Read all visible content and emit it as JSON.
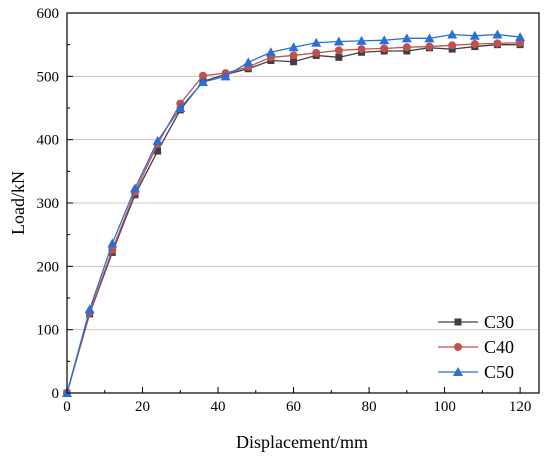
{
  "chart_data": {
    "type": "line",
    "title": "",
    "xlabel": "Displacement/mm",
    "ylabel": "Load/kN",
    "xlim": [
      0,
      125
    ],
    "ylim": [
      0,
      600
    ],
    "xticks": [
      0,
      20,
      40,
      60,
      80,
      100,
      120
    ],
    "yticks": [
      0,
      100,
      200,
      300,
      400,
      500,
      600
    ],
    "xtick_labels": [
      "0",
      "20",
      "40",
      "60",
      "80",
      "100",
      "120"
    ],
    "ytick_labels": [
      "0",
      "100",
      "200",
      "300",
      "400",
      "500",
      "600"
    ],
    "grid": "y-major",
    "legend_position": "bottom-right",
    "series": [
      {
        "name": "C30",
        "color": "#404040",
        "marker": "square",
        "x": [
          0,
          6,
          12,
          18,
          24,
          30,
          36,
          42,
          48,
          54,
          60,
          66,
          72,
          78,
          84,
          90,
          96,
          102,
          108,
          114,
          120
        ],
        "y": [
          0,
          125,
          222,
          313,
          382,
          447,
          492,
          503,
          512,
          525,
          523,
          533,
          530,
          538,
          540,
          540,
          545,
          543,
          547,
          550,
          550
        ]
      },
      {
        "name": "C40",
        "color": "#c0504d",
        "marker": "circle",
        "x": [
          0,
          6,
          12,
          18,
          24,
          30,
          36,
          42,
          48,
          54,
          60,
          66,
          72,
          78,
          84,
          90,
          96,
          102,
          108,
          114,
          120
        ],
        "y": [
          0,
          127,
          226,
          317,
          393,
          457,
          501,
          505,
          515,
          530,
          533,
          537,
          541,
          543,
          544,
          546,
          547,
          549,
          551,
          552,
          553
        ]
      },
      {
        "name": "C50",
        "color": "#2b6fd6",
        "marker": "triangle",
        "x": [
          0,
          6,
          12,
          18,
          24,
          30,
          36,
          42,
          48,
          54,
          60,
          66,
          72,
          78,
          84,
          90,
          96,
          102,
          108,
          114,
          120
        ],
        "y": [
          0,
          132,
          236,
          323,
          398,
          450,
          491,
          500,
          522,
          538,
          546,
          553,
          555,
          556,
          557,
          560,
          560,
          566,
          564,
          566,
          562
        ]
      }
    ]
  }
}
